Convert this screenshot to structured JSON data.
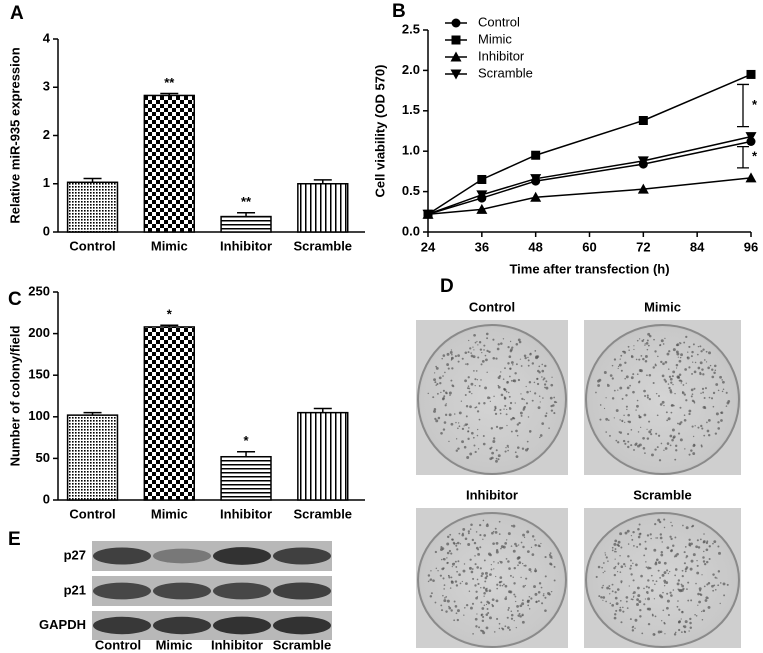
{
  "chart_data": [
    {
      "type": "bar",
      "panel_label": "A",
      "ylabel": "Relative miR-935 expression",
      "categories": [
        "Control",
        "Mimic",
        "Inhibitor",
        "Scramble"
      ],
      "values": [
        1.03,
        2.83,
        0.32,
        1.0
      ],
      "errors": [
        0.08,
        0.04,
        0.08,
        0.08
      ],
      "annotations": [
        null,
        "**",
        "**",
        null
      ],
      "patterns": [
        "dots",
        "checker",
        "hlines",
        "vlines"
      ],
      "ylim": [
        0,
        4
      ],
      "yticks": [
        0,
        1,
        2,
        3,
        4
      ]
    },
    {
      "type": "line",
      "panel_label": "B",
      "xlabel": "Time after transfection (h)",
      "ylabel": "Cell  viability (OD 570)",
      "x": [
        24,
        36,
        48,
        72,
        96
      ],
      "series": [
        {
          "name": "Control",
          "color": "#000000",
          "marker": "circle",
          "values": [
            0.22,
            0.42,
            0.63,
            0.84,
            1.12
          ]
        },
        {
          "name": "Mimic",
          "color": "#000000",
          "marker": "square",
          "values": [
            0.22,
            0.65,
            0.95,
            1.38,
            1.95
          ]
        },
        {
          "name": "Inhibitor",
          "color": "#000000",
          "marker": "triangle",
          "values": [
            0.22,
            0.28,
            0.43,
            0.53,
            0.67
          ]
        },
        {
          "name": "Scramble",
          "color": "#000000",
          "marker": "triangle-down",
          "values": [
            0.22,
            0.46,
            0.66,
            0.88,
            1.18
          ]
        }
      ],
      "annotations": [
        {
          "text": "*",
          "between": [
            "Mimic",
            "Scramble"
          ]
        },
        {
          "text": "*",
          "between": [
            "Scramble",
            "Inhibitor"
          ]
        }
      ],
      "xlim": [
        24,
        96
      ],
      "xticks": [
        24,
        36,
        48,
        60,
        72,
        84,
        96
      ],
      "ylim": [
        0,
        2.5
      ],
      "yticks": [
        {
          "value": 0,
          "label": "0.0"
        },
        0.5,
        {
          "value": 1,
          "label": "1.0"
        },
        1.5,
        {
          "value": 2,
          "label": "2.0"
        },
        2.5
      ],
      "legend": "upper left"
    },
    {
      "type": "bar",
      "panel_label": "C",
      "ylabel": "Number of colony/field",
      "categories": [
        "Control",
        "Mimic",
        "Inhibitor",
        "Scramble"
      ],
      "values": [
        102,
        208,
        52,
        105
      ],
      "errors": [
        3,
        2,
        6,
        5
      ],
      "annotations": [
        null,
        "*",
        "*",
        null
      ],
      "patterns": [
        "dots",
        "checker",
        "hlines",
        "vlines"
      ],
      "ylim": [
        0,
        250
      ],
      "yticks": [
        0,
        50,
        100,
        150,
        200,
        250
      ]
    }
  ],
  "colony_images": {
    "panel_label": "D",
    "titles": [
      "Control",
      "Mimic",
      "Inhibitor",
      "Scramble"
    ]
  },
  "western_blot": {
    "panel_label": "E",
    "proteins": [
      "p27",
      "p21",
      "GAPDH"
    ],
    "lanes": [
      "Control",
      "Mimic",
      "Inhibitor",
      "Scramble"
    ]
  }
}
